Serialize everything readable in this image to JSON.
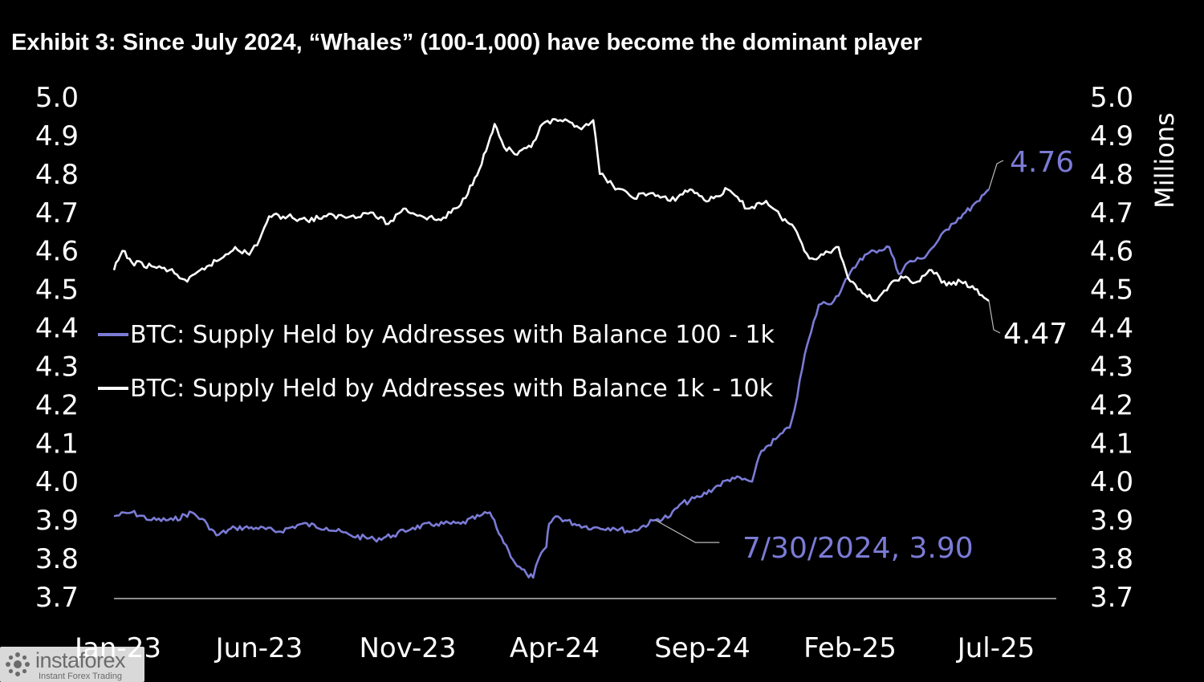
{
  "chart_data": {
    "type": "line",
    "title": "Exhibit 3: Since July 2024, “Whales” (100-1,000) have become the dominant player",
    "y_axis_left": {
      "ticks": [
        "5.0",
        "4.9",
        "4.8",
        "4.7",
        "4.6",
        "4.5",
        "4.4",
        "4.3",
        "4.2",
        "4.1",
        "4.0",
        "3.9",
        "3.8",
        "3.7"
      ],
      "range": [
        3.7,
        5.0
      ]
    },
    "y_axis_right": {
      "label": "Millions",
      "ticks": [
        "5.0",
        "4.9",
        "4.8",
        "4.7",
        "4.6",
        "4.5",
        "4.4",
        "4.3",
        "4.2",
        "4.1",
        "4.0",
        "3.9",
        "3.8",
        "3.7"
      ],
      "range": [
        3.7,
        5.0
      ]
    },
    "x_axis": {
      "ticks": [
        "Jan-23",
        "Jun-23",
        "Nov-23",
        "Apr-24",
        "Sep-24",
        "Feb-25",
        "Jul-25"
      ]
    },
    "legend_position": "middle-left",
    "series": [
      {
        "name": "BTC: Supply Held by Addresses with Balance 100 - 1k",
        "color": "#7b7bd6",
        "points": [
          [
            "2023-01-01",
            3.91
          ],
          [
            "2023-01-20",
            3.92
          ],
          [
            "2023-02-10",
            3.9
          ],
          [
            "2023-03-05",
            3.9
          ],
          [
            "2023-03-25",
            3.92
          ],
          [
            "2023-04-10",
            3.89
          ],
          [
            "2023-04-20",
            3.86
          ],
          [
            "2023-05-10",
            3.88
          ],
          [
            "2023-06-01",
            3.88
          ],
          [
            "2023-06-25",
            3.87
          ],
          [
            "2023-07-20",
            3.89
          ],
          [
            "2023-08-15",
            3.88
          ],
          [
            "2023-09-10",
            3.86
          ],
          [
            "2023-10-05",
            3.85
          ],
          [
            "2023-10-25",
            3.86
          ],
          [
            "2023-11-15",
            3.88
          ],
          [
            "2023-12-10",
            3.89
          ],
          [
            "2024-01-05",
            3.89
          ],
          [
            "2024-01-25",
            3.91
          ],
          [
            "2024-02-05",
            3.92
          ],
          [
            "2024-02-12",
            3.88
          ],
          [
            "2024-02-25",
            3.82
          ],
          [
            "2024-03-05",
            3.78
          ],
          [
            "2024-03-15",
            3.76
          ],
          [
            "2024-03-22",
            3.75
          ],
          [
            "2024-03-28",
            3.8
          ],
          [
            "2024-04-05",
            3.83
          ],
          [
            "2024-04-08",
            3.89
          ],
          [
            "2024-04-15",
            3.91
          ],
          [
            "2024-05-05",
            3.89
          ],
          [
            "2024-05-25",
            3.88
          ],
          [
            "2024-06-15",
            3.88
          ],
          [
            "2024-07-05",
            3.87
          ],
          [
            "2024-07-30",
            3.9
          ],
          [
            "2024-08-15",
            3.91
          ],
          [
            "2024-08-25",
            3.94
          ],
          [
            "2024-09-15",
            3.96
          ],
          [
            "2024-10-05",
            3.99
          ],
          [
            "2024-10-20",
            4.01
          ],
          [
            "2024-11-10",
            4.0
          ],
          [
            "2024-11-20",
            4.08
          ],
          [
            "2024-12-05",
            4.11
          ],
          [
            "2024-12-20",
            4.14
          ],
          [
            "2024-12-28",
            4.22
          ],
          [
            "2025-01-05",
            4.33
          ],
          [
            "2025-01-12",
            4.39
          ],
          [
            "2025-01-20",
            4.46
          ],
          [
            "2025-02-05",
            4.47
          ],
          [
            "2025-02-20",
            4.53
          ],
          [
            "2025-03-05",
            4.58
          ],
          [
            "2025-03-20",
            4.6
          ],
          [
            "2025-04-05",
            4.61
          ],
          [
            "2025-04-15",
            4.54
          ],
          [
            "2025-04-25",
            4.57
          ],
          [
            "2025-05-10",
            4.58
          ],
          [
            "2025-05-25",
            4.62
          ],
          [
            "2025-06-10",
            4.67
          ],
          [
            "2025-06-25",
            4.7
          ],
          [
            "2025-07-10",
            4.73
          ],
          [
            "2025-07-20",
            4.76
          ]
        ],
        "end_label": "4.76",
        "annotation": {
          "date": "2024-07-30",
          "value": 3.9,
          "label": "7/30/2024, 3.90"
        }
      },
      {
        "name": "BTC: Supply Held by Addresses with Balance 1k - 10k",
        "color": "#ffffff",
        "points": [
          [
            "2023-01-01",
            4.55
          ],
          [
            "2023-01-10",
            4.6
          ],
          [
            "2023-01-20",
            4.57
          ],
          [
            "2023-02-10",
            4.56
          ],
          [
            "2023-03-01",
            4.55
          ],
          [
            "2023-03-20",
            4.52
          ],
          [
            "2023-04-10",
            4.56
          ],
          [
            "2023-04-25",
            4.58
          ],
          [
            "2023-05-10",
            4.61
          ],
          [
            "2023-05-25",
            4.59
          ],
          [
            "2023-06-05",
            4.63
          ],
          [
            "2023-06-15",
            4.69
          ],
          [
            "2023-07-05",
            4.69
          ],
          [
            "2023-07-25",
            4.68
          ],
          [
            "2023-08-15",
            4.69
          ],
          [
            "2023-09-10",
            4.69
          ],
          [
            "2023-10-01",
            4.7
          ],
          [
            "2023-10-20",
            4.67
          ],
          [
            "2023-11-05",
            4.71
          ],
          [
            "2023-11-25",
            4.69
          ],
          [
            "2023-12-15",
            4.68
          ],
          [
            "2024-01-05",
            4.72
          ],
          [
            "2024-01-20",
            4.79
          ],
          [
            "2024-02-01",
            4.86
          ],
          [
            "2024-02-10",
            4.93
          ],
          [
            "2024-02-20",
            4.87
          ],
          [
            "2024-03-05",
            4.85
          ],
          [
            "2024-03-20",
            4.87
          ],
          [
            "2024-04-01",
            4.93
          ],
          [
            "2024-04-20",
            4.94
          ],
          [
            "2024-05-10",
            4.92
          ],
          [
            "2024-05-25",
            4.94
          ],
          [
            "2024-06-01",
            4.8
          ],
          [
            "2024-06-15",
            4.77
          ],
          [
            "2024-07-05",
            4.74
          ],
          [
            "2024-07-25",
            4.75
          ],
          [
            "2024-08-15",
            4.73
          ],
          [
            "2024-09-05",
            4.76
          ],
          [
            "2024-09-25",
            4.73
          ],
          [
            "2024-10-15",
            4.76
          ],
          [
            "2024-11-05",
            4.71
          ],
          [
            "2024-11-25",
            4.73
          ],
          [
            "2024-12-10",
            4.69
          ],
          [
            "2024-12-25",
            4.66
          ],
          [
            "2025-01-10",
            4.58
          ],
          [
            "2025-01-25",
            4.59
          ],
          [
            "2025-02-10",
            4.61
          ],
          [
            "2025-02-20",
            4.53
          ],
          [
            "2025-03-05",
            4.5
          ],
          [
            "2025-03-20",
            4.47
          ],
          [
            "2025-04-05",
            4.51
          ],
          [
            "2025-04-20",
            4.53
          ],
          [
            "2025-05-05",
            4.52
          ],
          [
            "2025-05-20",
            4.55
          ],
          [
            "2025-06-05",
            4.51
          ],
          [
            "2025-06-20",
            4.52
          ],
          [
            "2025-07-05",
            4.5
          ],
          [
            "2025-07-20",
            4.47
          ]
        ],
        "end_label": "4.47"
      }
    ]
  },
  "watermark": {
    "name": "instaforex",
    "tagline": "Instant Forex Trading"
  }
}
